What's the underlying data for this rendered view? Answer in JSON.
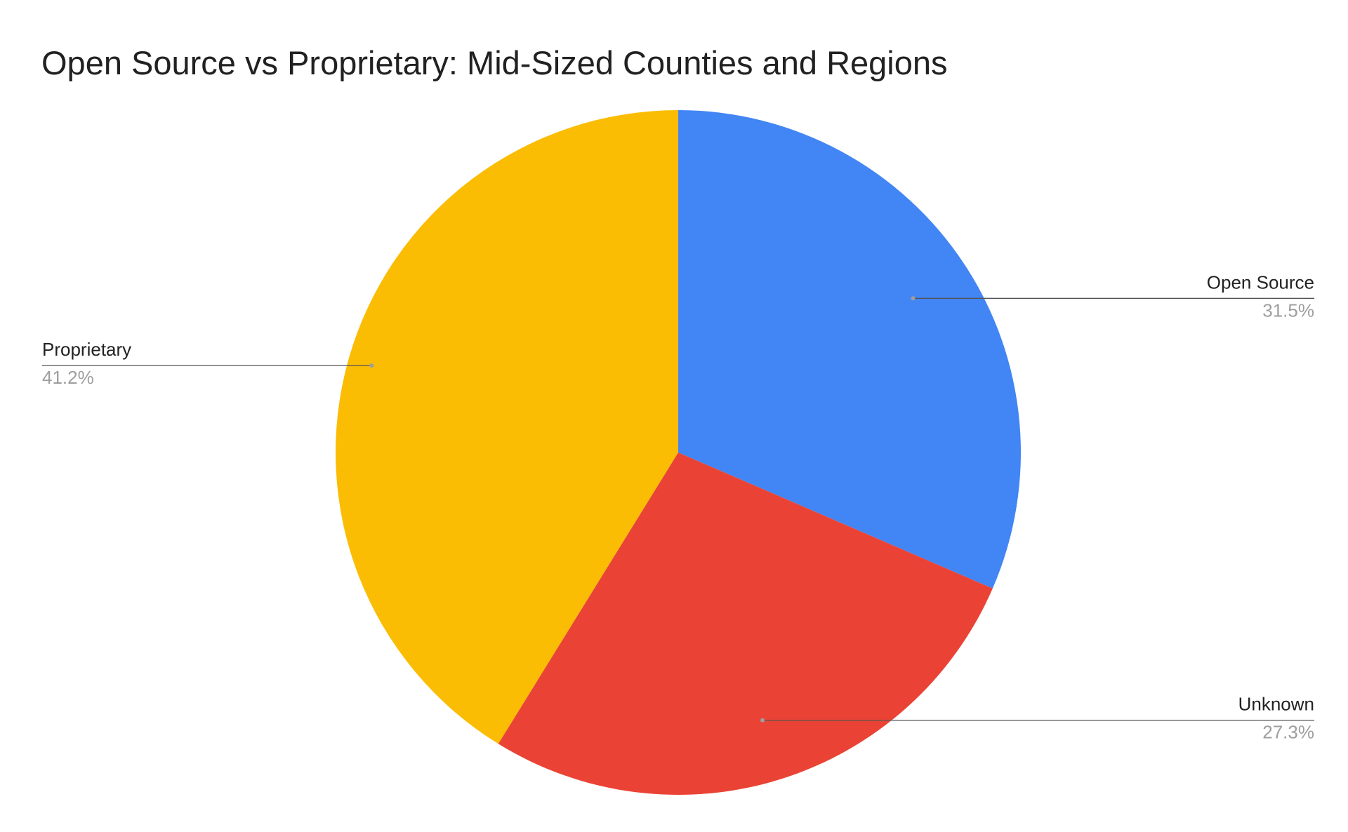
{
  "chart_data": {
    "type": "pie",
    "title": "Open Source vs Proprietary: Mid-Sized Counties and Regions",
    "start_angle_deg": 0,
    "direction": "clockwise",
    "slices": [
      {
        "label": "Open Source",
        "value": 31.5,
        "percent_label": "31.5%",
        "color": "#4285F4"
      },
      {
        "label": "Unknown",
        "value": 27.3,
        "percent_label": "27.3%",
        "color": "#EA4335"
      },
      {
        "label": "Proprietary",
        "value": 41.2,
        "percent_label": "41.2%",
        "color": "#FBBC04"
      }
    ],
    "legend": "none",
    "label_style": "callout-lines"
  }
}
